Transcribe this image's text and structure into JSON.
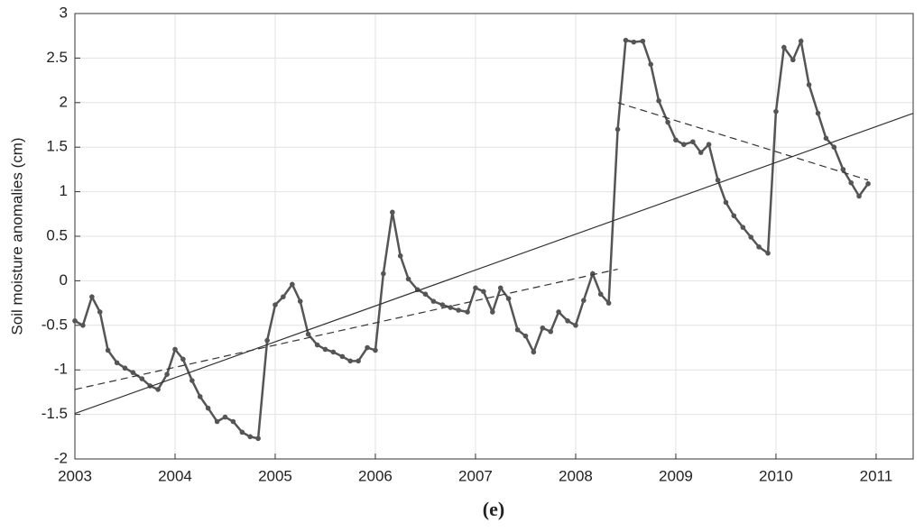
{
  "chart_data": {
    "type": "line",
    "ylabel": "Soil moisture anomalies (cm)",
    "caption": "(e)",
    "xlim": [
      2003,
      2011.37
    ],
    "ylim": [
      -2,
      3
    ],
    "xticks": [
      2003,
      2004,
      2005,
      2006,
      2007,
      2008,
      2009,
      2010,
      2011
    ],
    "yticks": [
      -2,
      -1.5,
      -1,
      -0.5,
      0,
      0.5,
      1,
      1.5,
      2,
      2.5,
      3
    ],
    "grid": true,
    "series": [
      {
        "color": "#555555",
        "markers": true,
        "dash": false,
        "x": [
          2003,
          2003.08,
          2003.17,
          2003.25,
          2003.33,
          2003.42,
          2003.5,
          2003.58,
          2003.67,
          2003.75,
          2003.83,
          2003.92,
          2004,
          2004.08,
          2004.17,
          2004.25,
          2004.33,
          2004.42,
          2004.5,
          2004.58,
          2004.67,
          2004.75,
          2004.83,
          2004.92,
          2005,
          2005.08,
          2005.17,
          2005.25,
          2005.33,
          2005.42,
          2005.5,
          2005.58,
          2005.67,
          2005.75,
          2005.83,
          2005.92,
          2006,
          2006.08,
          2006.17,
          2006.25,
          2006.33,
          2006.42,
          2006.5,
          2006.58,
          2006.67,
          2006.75,
          2006.83,
          2006.92,
          2007,
          2007.08,
          2007.17,
          2007.25,
          2007.33,
          2007.42,
          2007.5,
          2007.58,
          2007.67,
          2007.75,
          2007.83,
          2007.92,
          2008,
          2008.08,
          2008.17,
          2008.25,
          2008.33,
          2008.42,
          2008.5,
          2008.58,
          2008.67,
          2008.75,
          2008.83,
          2008.92,
          2009,
          2009.08,
          2009.17,
          2009.25,
          2009.33,
          2009.42,
          2009.5,
          2009.58,
          2009.67,
          2009.75,
          2009.83,
          2009.92,
          2010,
          2010.08,
          2010.17,
          2010.25,
          2010.33,
          2010.42,
          2010.5,
          2010.58,
          2010.67,
          2010.75,
          2010.83,
          2010.92
        ],
        "values": [
          -0.45,
          -0.5,
          -0.18,
          -0.35,
          -0.78,
          -0.92,
          -0.98,
          -1.03,
          -1.1,
          -1.18,
          -1.22,
          -1.05,
          -0.77,
          -0.88,
          -1.12,
          -1.3,
          -1.43,
          -1.58,
          -1.53,
          -1.58,
          -1.7,
          -1.75,
          -1.77,
          -0.67,
          -0.27,
          -0.18,
          -0.04,
          -0.23,
          -0.6,
          -0.72,
          -0.77,
          -0.8,
          -0.85,
          -0.9,
          -0.9,
          -0.75,
          -0.78,
          0.08,
          0.77,
          0.28,
          0.02,
          -0.1,
          -0.15,
          -0.23,
          -0.27,
          -0.3,
          -0.33,
          -0.35,
          -0.08,
          -0.12,
          -0.35,
          -0.08,
          -0.2,
          -0.55,
          -0.62,
          -0.8,
          -0.53,
          -0.57,
          -0.35,
          -0.45,
          -0.5,
          -0.22,
          0.08,
          -0.15,
          -0.25,
          1.7,
          2.7,
          2.68,
          2.69,
          2.43,
          2.02,
          1.78,
          1.58,
          1.53,
          1.56,
          1.44,
          1.53,
          1.13,
          0.88,
          0.73,
          0.6,
          0.49,
          0.38,
          0.31,
          1.9,
          2.62,
          2.48,
          2.69,
          2.2,
          1.88,
          1.6,
          1.5,
          1.25,
          1.1,
          0.95,
          1.09
        ]
      },
      {
        "color": "#333333",
        "markers": false,
        "dash": false,
        "x": [
          2003,
          2011.37
        ],
        "values": [
          -1.49,
          1.88
        ]
      },
      {
        "color": "#333333",
        "markers": false,
        "dash": true,
        "x": [
          2003,
          2008.42
        ],
        "values": [
          -1.22,
          0.13
        ]
      },
      {
        "color": "#333333",
        "markers": false,
        "dash": true,
        "x": [
          2008.42,
          2010.92
        ],
        "values": [
          2.0,
          1.13
        ]
      }
    ]
  }
}
